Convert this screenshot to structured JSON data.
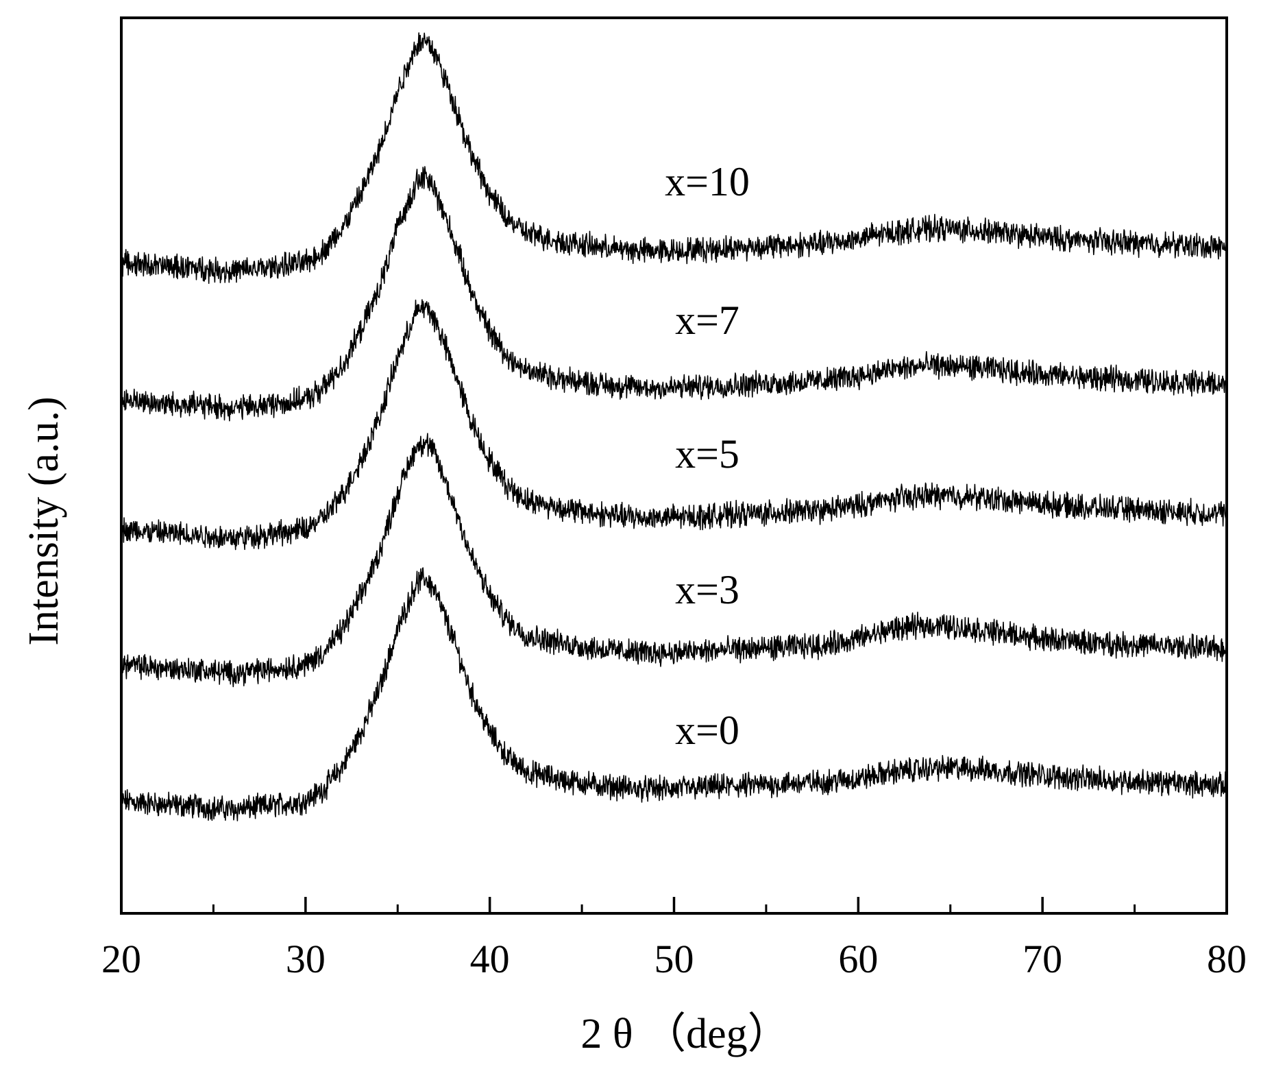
{
  "chart_data": {
    "type": "line",
    "title": "",
    "xlabel": "2 θ （deg）",
    "ylabel": "Intensity (a.u.)",
    "xlim": [
      20,
      80
    ],
    "xticks": [
      "20",
      "30",
      "40",
      "50",
      "60",
      "70",
      "80"
    ],
    "minor_xticks": [
      25,
      35,
      45,
      55,
      65,
      75
    ],
    "yticks": [],
    "grid": false,
    "legend": "none",
    "line_color": "#000000",
    "note": "XRD patterns, curves vertically offset; values are relative intensity estimates",
    "series": [
      {
        "name": "x=0",
        "x": [
          20,
          22,
          24,
          26,
          28,
          30,
          31,
          32,
          33,
          34,
          35,
          36,
          36.5,
          37,
          38,
          39,
          40,
          41,
          42,
          44,
          46,
          48,
          50,
          52,
          54,
          56,
          58,
          60,
          62,
          64,
          66,
          68,
          70,
          72,
          74,
          76,
          78,
          80
        ],
        "y": [
          55,
          53,
          52,
          50,
          52,
          55,
          62,
          75,
          95,
          120,
          155,
          182,
          185,
          178,
          150,
          118,
          95,
          80,
          72,
          67,
          64,
          62,
          62,
          63,
          64,
          65,
          66,
          68,
          72,
          74,
          74,
          72,
          70,
          68,
          67,
          66,
          65,
          64
        ]
      },
      {
        "name": "x=3",
        "x": [
          20,
          22,
          24,
          26,
          28,
          30,
          31,
          32,
          33,
          34,
          35,
          36,
          36.5,
          37,
          38,
          39,
          40,
          41,
          42,
          44,
          46,
          48,
          50,
          52,
          54,
          56,
          58,
          60,
          62,
          64,
          66,
          68,
          70,
          72,
          74,
          76,
          78,
          80
        ],
        "y": [
          55,
          53,
          52,
          50,
          52,
          55,
          62,
          75,
          95,
          120,
          155,
          182,
          185,
          178,
          150,
          118,
          95,
          80,
          72,
          67,
          64,
          62,
          62,
          63,
          64,
          65,
          66,
          70,
          76,
          78,
          76,
          73,
          70,
          68,
          67,
          66,
          65,
          64
        ]
      },
      {
        "name": "x=5",
        "x": [
          20,
          22,
          24,
          26,
          28,
          30,
          31,
          32,
          33,
          34,
          35,
          36,
          36.5,
          37,
          38,
          39,
          40,
          41,
          42,
          44,
          46,
          48,
          50,
          52,
          54,
          56,
          58,
          60,
          62,
          64,
          66,
          68,
          70,
          72,
          74,
          76,
          78,
          80
        ],
        "y": [
          55,
          53,
          52,
          50,
          52,
          55,
          62,
          75,
          95,
          120,
          155,
          182,
          185,
          178,
          150,
          118,
          95,
          80,
          72,
          67,
          64,
          62,
          62,
          63,
          64,
          65,
          66,
          69,
          73,
          75,
          74,
          72,
          70,
          68,
          67,
          66,
          65,
          64
        ]
      },
      {
        "name": "x=7",
        "x": [
          20,
          22,
          24,
          26,
          28,
          30,
          31,
          32,
          33,
          34,
          35,
          36,
          36.5,
          37,
          38,
          39,
          40,
          41,
          42,
          44,
          46,
          48,
          50,
          52,
          54,
          56,
          58,
          60,
          62,
          64,
          66,
          68,
          70,
          72,
          74,
          76,
          78,
          80
        ],
        "y": [
          55,
          53,
          52,
          50,
          52,
          55,
          62,
          75,
          95,
          120,
          155,
          182,
          185,
          178,
          150,
          118,
          95,
          80,
          72,
          67,
          64,
          62,
          62,
          63,
          64,
          65,
          66,
          69,
          73,
          75,
          74,
          72,
          70,
          68,
          67,
          66,
          65,
          64
        ]
      },
      {
        "name": "x=10",
        "x": [
          20,
          22,
          24,
          26,
          28,
          30,
          31,
          32,
          33,
          34,
          35,
          36,
          36.5,
          37,
          38,
          39,
          40,
          41,
          42,
          44,
          46,
          48,
          50,
          52,
          54,
          56,
          58,
          60,
          62,
          64,
          66,
          68,
          70,
          72,
          74,
          76,
          78,
          80
        ],
        "y": [
          55,
          53,
          52,
          50,
          52,
          55,
          62,
          75,
          95,
          120,
          155,
          182,
          185,
          178,
          150,
          118,
          95,
          80,
          72,
          67,
          64,
          62,
          62,
          63,
          64,
          65,
          66,
          69,
          73,
          75,
          74,
          72,
          70,
          68,
          67,
          66,
          65,
          64
        ]
      }
    ]
  }
}
